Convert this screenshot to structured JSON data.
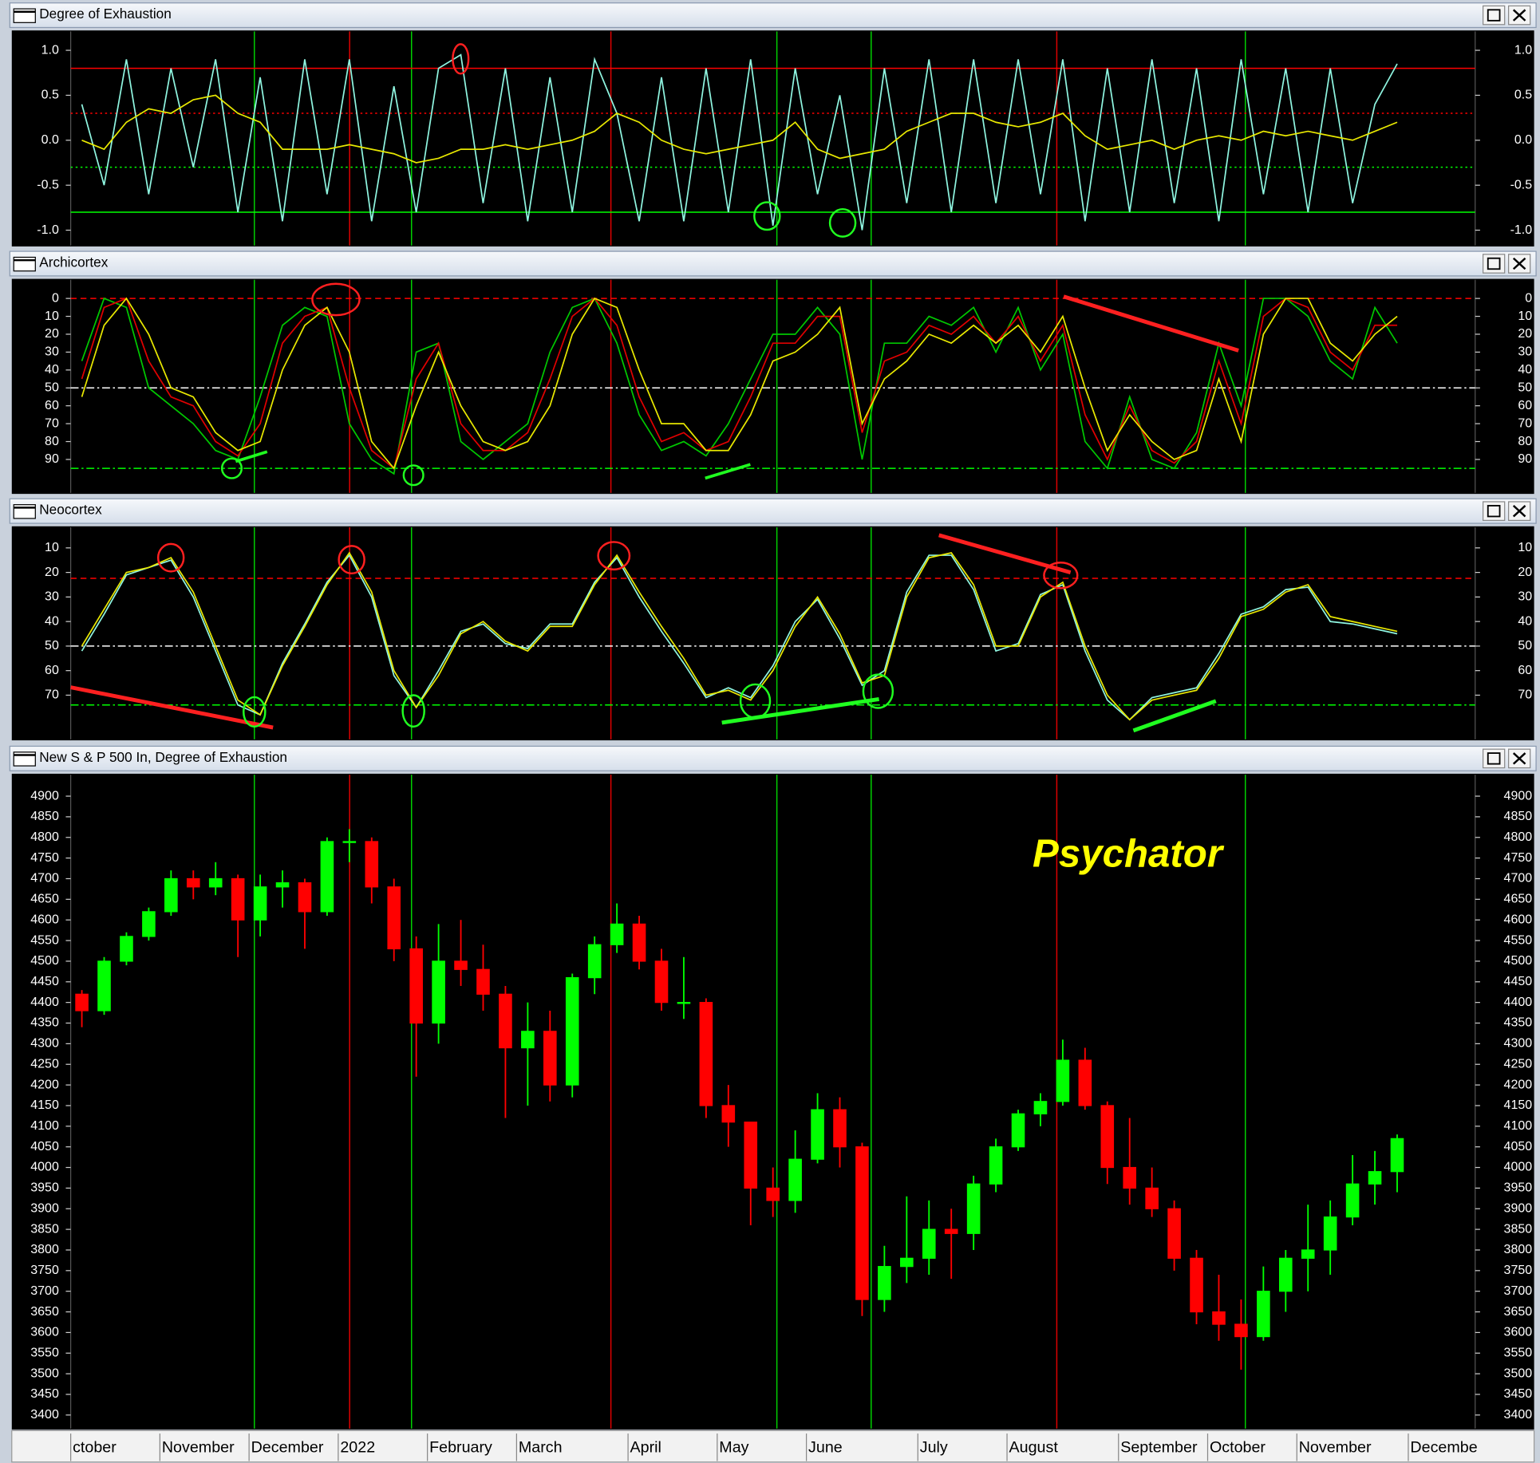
{
  "chart_data": [
    {
      "type": "line",
      "title": "Degree of Exhaustion",
      "ylim": [
        -1.17,
        1.21
      ],
      "yticks": [
        {
          "value": 1,
          "label": "1.0"
        },
        0.5,
        {
          "value": 0,
          "label": "0.0"
        },
        -0.5,
        {
          "value": -1,
          "label": "-1.0"
        }
      ],
      "hlines": [
        {
          "value": 0.8,
          "color": "#ff0000",
          "style": "solid"
        },
        {
          "value": 0.3,
          "color": "#ff0000",
          "style": "dotted"
        },
        {
          "value": -0.3,
          "color": "#00ff00",
          "style": "dotted"
        },
        {
          "value": -0.8,
          "color": "#00ff00",
          "style": "solid"
        }
      ],
      "series": [
        {
          "color": "#8ff5e0",
          "values": [
            0.4,
            -0.5,
            0.9,
            -0.6,
            0.8,
            -0.3,
            0.9,
            -0.8,
            0.7,
            -0.9,
            0.9,
            -0.6,
            0.9,
            -0.9,
            0.6,
            -0.8,
            0.8,
            0.95,
            -0.7,
            0.8,
            -0.9,
            0.7,
            -0.8,
            0.9,
            0.3,
            -0.9,
            0.7,
            -0.9,
            0.8,
            -0.8,
            0.9,
            -0.95,
            0.8,
            -0.6,
            0.5,
            -1.0,
            0.8,
            -0.7,
            0.9,
            -0.8,
            0.9,
            -0.7,
            0.9,
            -0.6,
            0.9,
            -0.9,
            0.8,
            -0.8,
            0.9,
            -0.7,
            0.8,
            -0.9,
            0.9,
            -0.6,
            0.8,
            -0.8,
            0.8,
            -0.7,
            0.4,
            0.85,
            null,
            null,
            null
          ]
        },
        {
          "color": "#e8e800",
          "values": [
            0.0,
            -0.1,
            0.2,
            0.35,
            0.3,
            0.45,
            0.5,
            0.3,
            0.2,
            -0.1,
            -0.1,
            -0.1,
            -0.05,
            -0.1,
            -0.15,
            -0.25,
            -0.2,
            -0.1,
            -0.1,
            -0.05,
            -0.1,
            -0.05,
            0.0,
            0.1,
            0.3,
            0.2,
            0.0,
            -0.1,
            -0.15,
            -0.1,
            -0.05,
            0.0,
            0.2,
            -0.1,
            -0.2,
            -0.15,
            -0.1,
            0.1,
            0.2,
            0.3,
            0.3,
            0.2,
            0.15,
            0.2,
            0.3,
            0.05,
            -0.1,
            -0.05,
            0.0,
            -0.1,
            0.0,
            0.05,
            0.0,
            0.1,
            0.05,
            0.1,
            0.05,
            0.0,
            0.1,
            0.2,
            null,
            null,
            null
          ]
        }
      ]
    },
    {
      "type": "line",
      "title": "Archicortex",
      "ylim": [
        108.7,
        -10.4
      ],
      "yticks": [
        0,
        10,
        20,
        30,
        40,
        50,
        60,
        70,
        80,
        90
      ],
      "hlines": [
        {
          "value": 0,
          "color": "#ff0000",
          "style": "dashed"
        },
        {
          "value": 50,
          "color": "#ffffff",
          "style": "dashdot"
        },
        {
          "value": 95,
          "color": "#00ff00",
          "style": "dashdot"
        }
      ],
      "series": [
        {
          "color": "#00c800",
          "values": [
            35,
            0,
            5,
            50,
            60,
            70,
            85,
            90,
            55,
            15,
            5,
            10,
            70,
            90,
            98,
            30,
            25,
            80,
            90,
            80,
            70,
            30,
            5,
            0,
            25,
            65,
            85,
            80,
            88,
            70,
            45,
            20,
            20,
            5,
            20,
            90,
            25,
            25,
            10,
            15,
            5,
            30,
            5,
            40,
            20,
            80,
            95,
            55,
            90,
            95,
            75,
            25,
            60,
            0,
            0,
            10,
            35,
            45,
            5,
            25,
            null,
            null,
            null
          ]
        },
        {
          "color": "#e00000",
          "values": [
            45,
            5,
            0,
            35,
            55,
            60,
            80,
            88,
            70,
            25,
            10,
            5,
            50,
            85,
            95,
            45,
            25,
            70,
            85,
            85,
            75,
            45,
            10,
            0,
            15,
            55,
            80,
            75,
            85,
            80,
            55,
            25,
            25,
            10,
            10,
            75,
            35,
            30,
            15,
            20,
            10,
            25,
            10,
            35,
            15,
            65,
            90,
            60,
            85,
            92,
            80,
            35,
            70,
            10,
            0,
            5,
            30,
            40,
            15,
            15,
            null,
            null,
            null
          ]
        },
        {
          "color": "#e8e800",
          "values": [
            55,
            15,
            0,
            20,
            50,
            55,
            75,
            85,
            80,
            40,
            15,
            5,
            30,
            80,
            95,
            60,
            30,
            60,
            80,
            85,
            80,
            60,
            20,
            0,
            5,
            40,
            70,
            70,
            85,
            85,
            65,
            35,
            30,
            20,
            5,
            70,
            45,
            35,
            20,
            25,
            15,
            25,
            15,
            30,
            10,
            50,
            85,
            65,
            80,
            90,
            85,
            45,
            80,
            20,
            0,
            0,
            25,
            35,
            20,
            10,
            null,
            null,
            null
          ]
        }
      ]
    },
    {
      "type": "line",
      "title": "Neocortex",
      "ylim": [
        88,
        1.6
      ],
      "yticks": [
        10,
        20,
        30,
        40,
        50,
        60,
        70
      ],
      "hlines": [
        {
          "value": 22.4,
          "color": "#ff0000",
          "style": "dashed"
        },
        {
          "value": 50,
          "color": "#ffffff",
          "style": "dashdot"
        },
        {
          "value": 74,
          "color": "#00ff00",
          "style": "dashdot"
        }
      ],
      "series": [
        {
          "color": "#8ff5e0",
          "values": [
            52,
            37,
            21,
            18,
            15,
            30,
            52,
            74,
            78,
            57,
            41,
            24,
            13,
            30,
            62,
            75,
            60,
            44,
            41,
            49,
            51,
            41,
            41,
            24,
            14,
            30,
            44,
            57,
            71,
            67,
            71,
            58,
            40,
            31,
            47,
            66,
            60,
            28,
            13,
            13,
            27,
            52,
            49,
            29,
            25,
            52,
            72,
            80,
            71,
            69,
            67,
            53,
            37,
            34,
            27,
            26,
            40,
            41,
            43,
            45,
            null,
            null,
            null
          ]
        },
        {
          "color": "#e8e800",
          "values": [
            50,
            35,
            20,
            18,
            14,
            28,
            50,
            72,
            78,
            58,
            42,
            25,
            12,
            28,
            60,
            75,
            62,
            45,
            40,
            48,
            52,
            42,
            42,
            25,
            13,
            28,
            42,
            55,
            70,
            68,
            72,
            60,
            42,
            30,
            45,
            65,
            62,
            30,
            14,
            12,
            25,
            50,
            50,
            30,
            24,
            50,
            70,
            80,
            72,
            70,
            68,
            55,
            38,
            35,
            28,
            25,
            38,
            40,
            42,
            44,
            null,
            null,
            null
          ]
        }
      ]
    },
    {
      "type": "candlestick",
      "title": "New S & P 500 In, Degree of Exhaustion",
      "annotation": "Psychator",
      "ylim": [
        3367,
        4952
      ],
      "yticks": [
        3400,
        3450,
        3500,
        3550,
        3600,
        3650,
        3700,
        3750,
        3800,
        3850,
        3900,
        3950,
        4000,
        4050,
        4100,
        4150,
        4200,
        4250,
        4300,
        4350,
        4400,
        4450,
        4500,
        4550,
        4600,
        4650,
        4700,
        4750,
        4800,
        4850,
        4900
      ],
      "up_color": "#00ff00",
      "down_color": "#ff0000",
      "categories": [
        "ctober",
        null,
        null,
        null,
        "November",
        null,
        null,
        null,
        "December",
        null,
        null,
        null,
        "2022",
        null,
        null,
        null,
        "February",
        null,
        null,
        null,
        "March",
        null,
        null,
        null,
        null,
        "April",
        null,
        null,
        null,
        "May",
        null,
        null,
        null,
        "June",
        null,
        null,
        null,
        null,
        "July",
        null,
        null,
        null,
        "August",
        null,
        null,
        null,
        null,
        "September",
        null,
        null,
        null,
        "October",
        null,
        null,
        null,
        "November",
        null,
        null,
        null,
        null,
        "Decembe",
        null,
        null
      ],
      "open": [
        4420,
        4380,
        4500,
        4560,
        4620,
        4700,
        4680,
        4700,
        4600,
        4680,
        4690,
        4620,
        4790,
        4790,
        4680,
        4530,
        4350,
        4500,
        4480,
        4420,
        4290,
        4330,
        4200,
        4460,
        4540,
        4590,
        4500,
        4400,
        4400,
        4150,
        4110,
        3950,
        3920,
        4020,
        4140,
        4050,
        3680,
        3760,
        3780,
        3850,
        3840,
        3960,
        4050,
        4130,
        4160,
        4260,
        4150,
        4000,
        3950,
        3900,
        3780,
        3650,
        3620,
        3590,
        3700,
        3780,
        3800,
        3880,
        3960,
        3990,
        null,
        null,
        null
      ],
      "high": [
        4430,
        4510,
        4570,
        4630,
        4720,
        4720,
        4740,
        4710,
        4710,
        4720,
        4700,
        4800,
        4820,
        4800,
        4700,
        4560,
        4590,
        4600,
        4540,
        4440,
        4400,
        4380,
        4470,
        4560,
        4640,
        4610,
        4530,
        4510,
        4410,
        4200,
        4110,
        4000,
        4090,
        4180,
        4170,
        4060,
        3810,
        3930,
        3920,
        3900,
        3980,
        4070,
        4140,
        4180,
        4310,
        4290,
        4160,
        4120,
        4000,
        3920,
        3800,
        3740,
        3680,
        3760,
        3800,
        3910,
        3920,
        4030,
        4040,
        4080,
        null,
        null,
        null
      ],
      "low": [
        4340,
        4370,
        4490,
        4550,
        4610,
        4650,
        4660,
        4510,
        4560,
        4630,
        4530,
        4610,
        4740,
        4640,
        4500,
        4220,
        4300,
        4440,
        4380,
        4120,
        4150,
        4160,
        4170,
        4420,
        4520,
        4480,
        4380,
        4360,
        4120,
        4050,
        3860,
        3880,
        3890,
        4010,
        4000,
        3640,
        3650,
        3720,
        3740,
        3730,
        3800,
        3940,
        4040,
        4100,
        4150,
        4140,
        3960,
        3910,
        3880,
        3750,
        3620,
        3580,
        3510,
        3580,
        3650,
        3700,
        3740,
        3860,
        3910,
        3940,
        null,
        null,
        null
      ],
      "close": [
        4380,
        4500,
        4560,
        4620,
        4700,
        4680,
        4700,
        4600,
        4680,
        4690,
        4620,
        4790,
        4790,
        4680,
        4530,
        4350,
        4500,
        4480,
        4420,
        4290,
        4330,
        4200,
        4460,
        4540,
        4590,
        4500,
        4400,
        4400,
        4150,
        4110,
        3950,
        3920,
        4020,
        4140,
        4050,
        3680,
        3760,
        3780,
        3850,
        3840,
        3960,
        4050,
        4130,
        4160,
        4260,
        4150,
        4000,
        3950,
        3900,
        3780,
        3650,
        3620,
        3590,
        3700,
        3780,
        3800,
        3880,
        3960,
        3990,
        4070,
        null,
        null,
        null
      ]
    }
  ]
}
